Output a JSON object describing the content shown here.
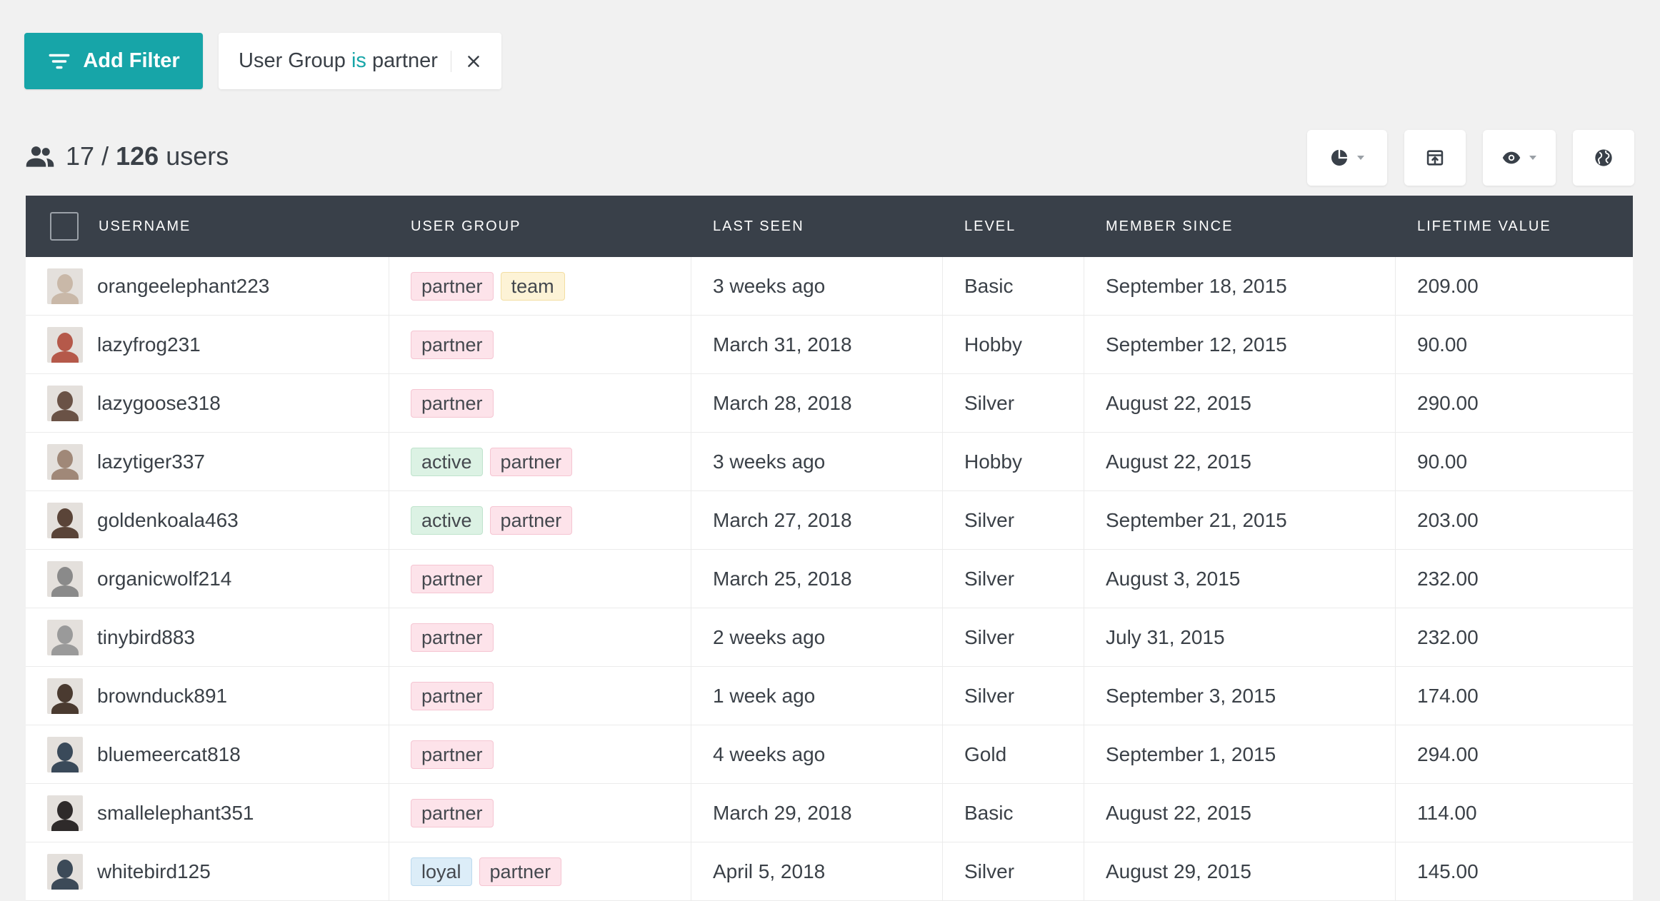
{
  "filter_bar": {
    "add_filter_label": "Add Filter",
    "active_filter": {
      "field": "User Group",
      "operator": "is",
      "value": "partner"
    }
  },
  "summary": {
    "filtered_count": "17",
    "separator": "/",
    "total_count": "126",
    "unit": "users"
  },
  "toolbar": {
    "icons": [
      "pie-chart-icon",
      "export-icon",
      "eye-icon",
      "globe-icon"
    ]
  },
  "table": {
    "columns": [
      "USERNAME",
      "USER GROUP",
      "LAST SEEN",
      "LEVEL",
      "MEMBER SINCE",
      "LIFETIME VALUE"
    ],
    "rows": [
      {
        "username": "orangeelephant223",
        "groups": [
          "partner",
          "team"
        ],
        "last_seen": "3 weeks ago",
        "level": "Basic",
        "member_since": "September 18, 2015",
        "lifetime_value": "209.00",
        "avatar_color": "#c9b8a8"
      },
      {
        "username": "lazyfrog231",
        "groups": [
          "partner"
        ],
        "last_seen": "March 31, 2018",
        "level": "Hobby",
        "member_since": "September 12, 2015",
        "lifetime_value": "90.00",
        "avatar_color": "#b5594a"
      },
      {
        "username": "lazygoose318",
        "groups": [
          "partner"
        ],
        "last_seen": "March 28, 2018",
        "level": "Silver",
        "member_since": "August 22, 2015",
        "lifetime_value": "290.00",
        "avatar_color": "#6a5246"
      },
      {
        "username": "lazytiger337",
        "groups": [
          "active",
          "partner"
        ],
        "last_seen": "3 weeks ago",
        "level": "Hobby",
        "member_since": "August 22, 2015",
        "lifetime_value": "90.00",
        "avatar_color": "#a08878"
      },
      {
        "username": "goldenkoala463",
        "groups": [
          "active",
          "partner"
        ],
        "last_seen": "March 27, 2018",
        "level": "Silver",
        "member_since": "September 21, 2015",
        "lifetime_value": "203.00",
        "avatar_color": "#5a4438"
      },
      {
        "username": "organicwolf214",
        "groups": [
          "partner"
        ],
        "last_seen": "March 25, 2018",
        "level": "Silver",
        "member_since": "August 3, 2015",
        "lifetime_value": "232.00",
        "avatar_color": "#8a8a8a"
      },
      {
        "username": "tinybird883",
        "groups": [
          "partner"
        ],
        "last_seen": "2 weeks ago",
        "level": "Silver",
        "member_since": "July 31, 2015",
        "lifetime_value": "232.00",
        "avatar_color": "#9a9a9a"
      },
      {
        "username": "brownduck891",
        "groups": [
          "partner"
        ],
        "last_seen": "1 week ago",
        "level": "Silver",
        "member_since": "September 3, 2015",
        "lifetime_value": "174.00",
        "avatar_color": "#4a3a30"
      },
      {
        "username": "bluemeercat818",
        "groups": [
          "partner"
        ],
        "last_seen": "4 weeks ago",
        "level": "Gold",
        "member_since": "September 1, 2015",
        "lifetime_value": "294.00",
        "avatar_color": "#3a4a5a"
      },
      {
        "username": "smallelephant351",
        "groups": [
          "partner"
        ],
        "last_seen": "March 29, 2018",
        "level": "Basic",
        "member_since": "August 22, 2015",
        "lifetime_value": "114.00",
        "avatar_color": "#2e2a2a"
      },
      {
        "username": "whitebird125",
        "groups": [
          "loyal",
          "partner"
        ],
        "last_seen": "April 5, 2018",
        "level": "Silver",
        "member_since": "August 29, 2015",
        "lifetime_value": "145.00",
        "avatar_color": "#3c4a58"
      }
    ]
  }
}
